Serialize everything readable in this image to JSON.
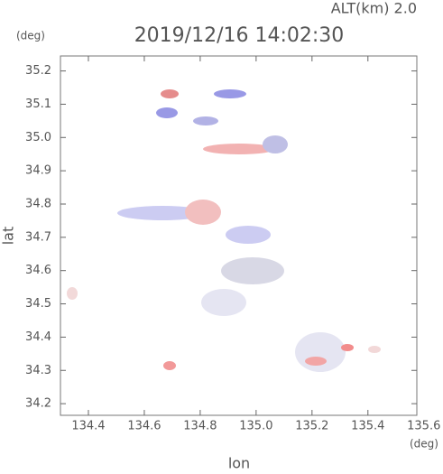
{
  "chart_data": {
    "type": "map",
    "title": "2019/12/16 14:02:30",
    "altitude_label": "ALT(km) 2.0",
    "y_unit": "(deg)",
    "x_unit": "(deg)",
    "xlabel": "lon",
    "ylabel": "lat",
    "xlim": [
      134.3,
      135.575
    ],
    "ylim": [
      34.165,
      35.245
    ],
    "xticks": [
      134.4,
      134.6,
      134.8,
      {
        "value": 135,
        "label": "135.0"
      },
      135.2,
      135.4,
      135.6
    ],
    "yticks": [
      34.2,
      34.3,
      34.4,
      34.5,
      34.6,
      34.7,
      34.8,
      34.9,
      {
        "value": 35,
        "label": "35.0"
      },
      35.1,
      35.2
    ]
  }
}
